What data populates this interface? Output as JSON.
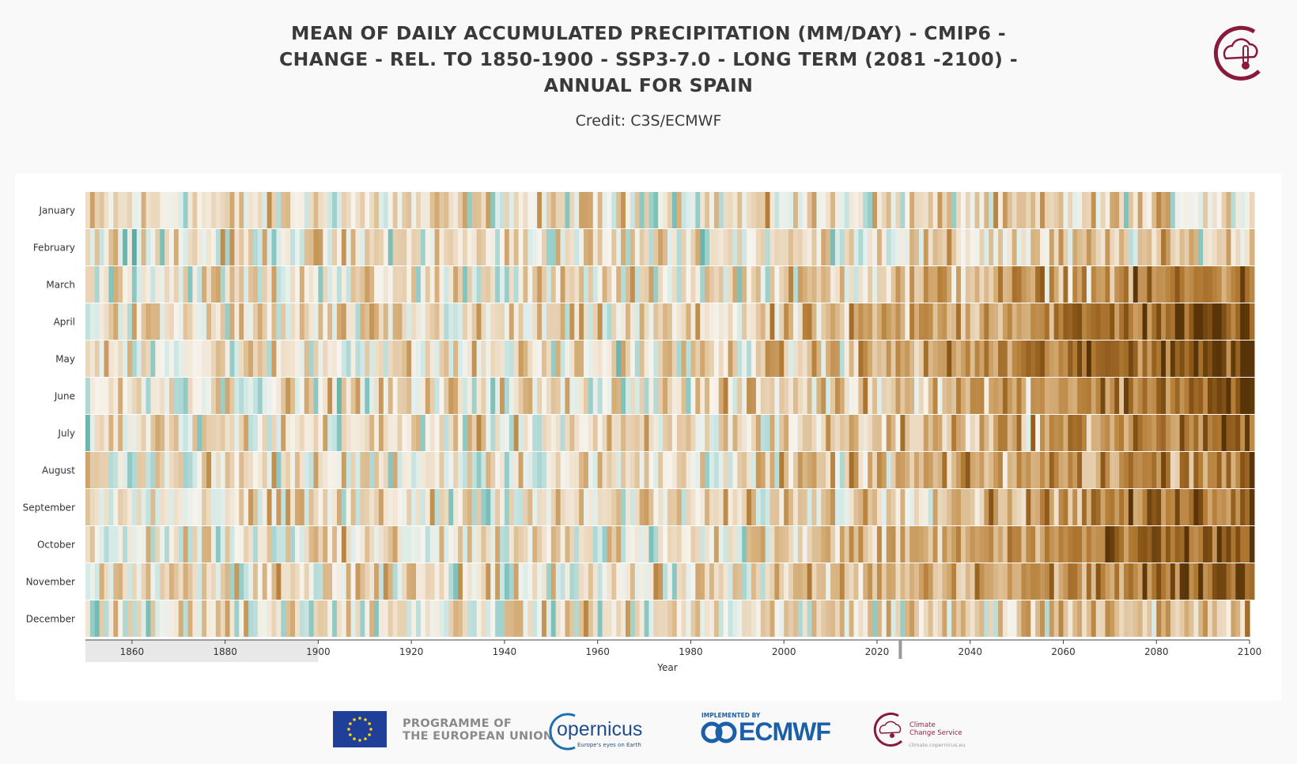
{
  "header": {
    "title": "MEAN OF DAILY ACCUMULATED PRECIPITATION (MM/DAY) - CMIP6 - CHANGE - REL. TO 1850-1900 - SSP3-7.0 - LONG TERM (2081 -2100) - ANNUAL FOR SPAIN",
    "credit": "Credit: C3S/ECMWF"
  },
  "chart_data": {
    "type": "heatmap",
    "title": "MEAN OF DAILY ACCUMULATED PRECIPITATION (MM/DAY) - CMIP6 - CHANGE - REL. TO 1850-1900 - SSP3-7.0 - LONG TERM (2081 -2100) - ANNUAL FOR SPAIN",
    "xlabel": "Year",
    "ylabel": "",
    "x_range": [
      1850,
      2100
    ],
    "x_ticks": [
      1860,
      1880,
      1900,
      1920,
      1940,
      1960,
      1980,
      2000,
      2020,
      2040,
      2060,
      2080,
      2100
    ],
    "y_categories": [
      "January",
      "February",
      "March",
      "April",
      "May",
      "June",
      "July",
      "August",
      "September",
      "October",
      "November",
      "December"
    ],
    "reference_period": [
      1850,
      1900
    ],
    "present_marker_year": 2025,
    "color_scale": "brown (drier) to teal (wetter), diverging",
    "colors": {
      "dry_strong": "#5a3406",
      "dry": "#b8843a",
      "neutral": "#f6f1e8",
      "wet": "#8ecbc4",
      "wet_strong": "#0f5e52"
    },
    "trend_description_by_month_2080s": [
      0.05,
      0.1,
      0.5,
      0.75,
      0.8,
      0.65,
      0.55,
      0.55,
      0.6,
      0.65,
      0.6,
      0.2
    ]
  },
  "footer": {
    "programme": [
      "PROGRAMME OF",
      "THE EUROPEAN UNION"
    ],
    "copernicus": "opernicus",
    "copernicus_sub": "Europe's eyes on Earth",
    "implemented_by": "IMPLEMENTED BY",
    "ecmwf": "ECMWF",
    "c3s": [
      "Climate",
      "Change Service"
    ],
    "c3s_url": "climate.copernicus.eu"
  }
}
